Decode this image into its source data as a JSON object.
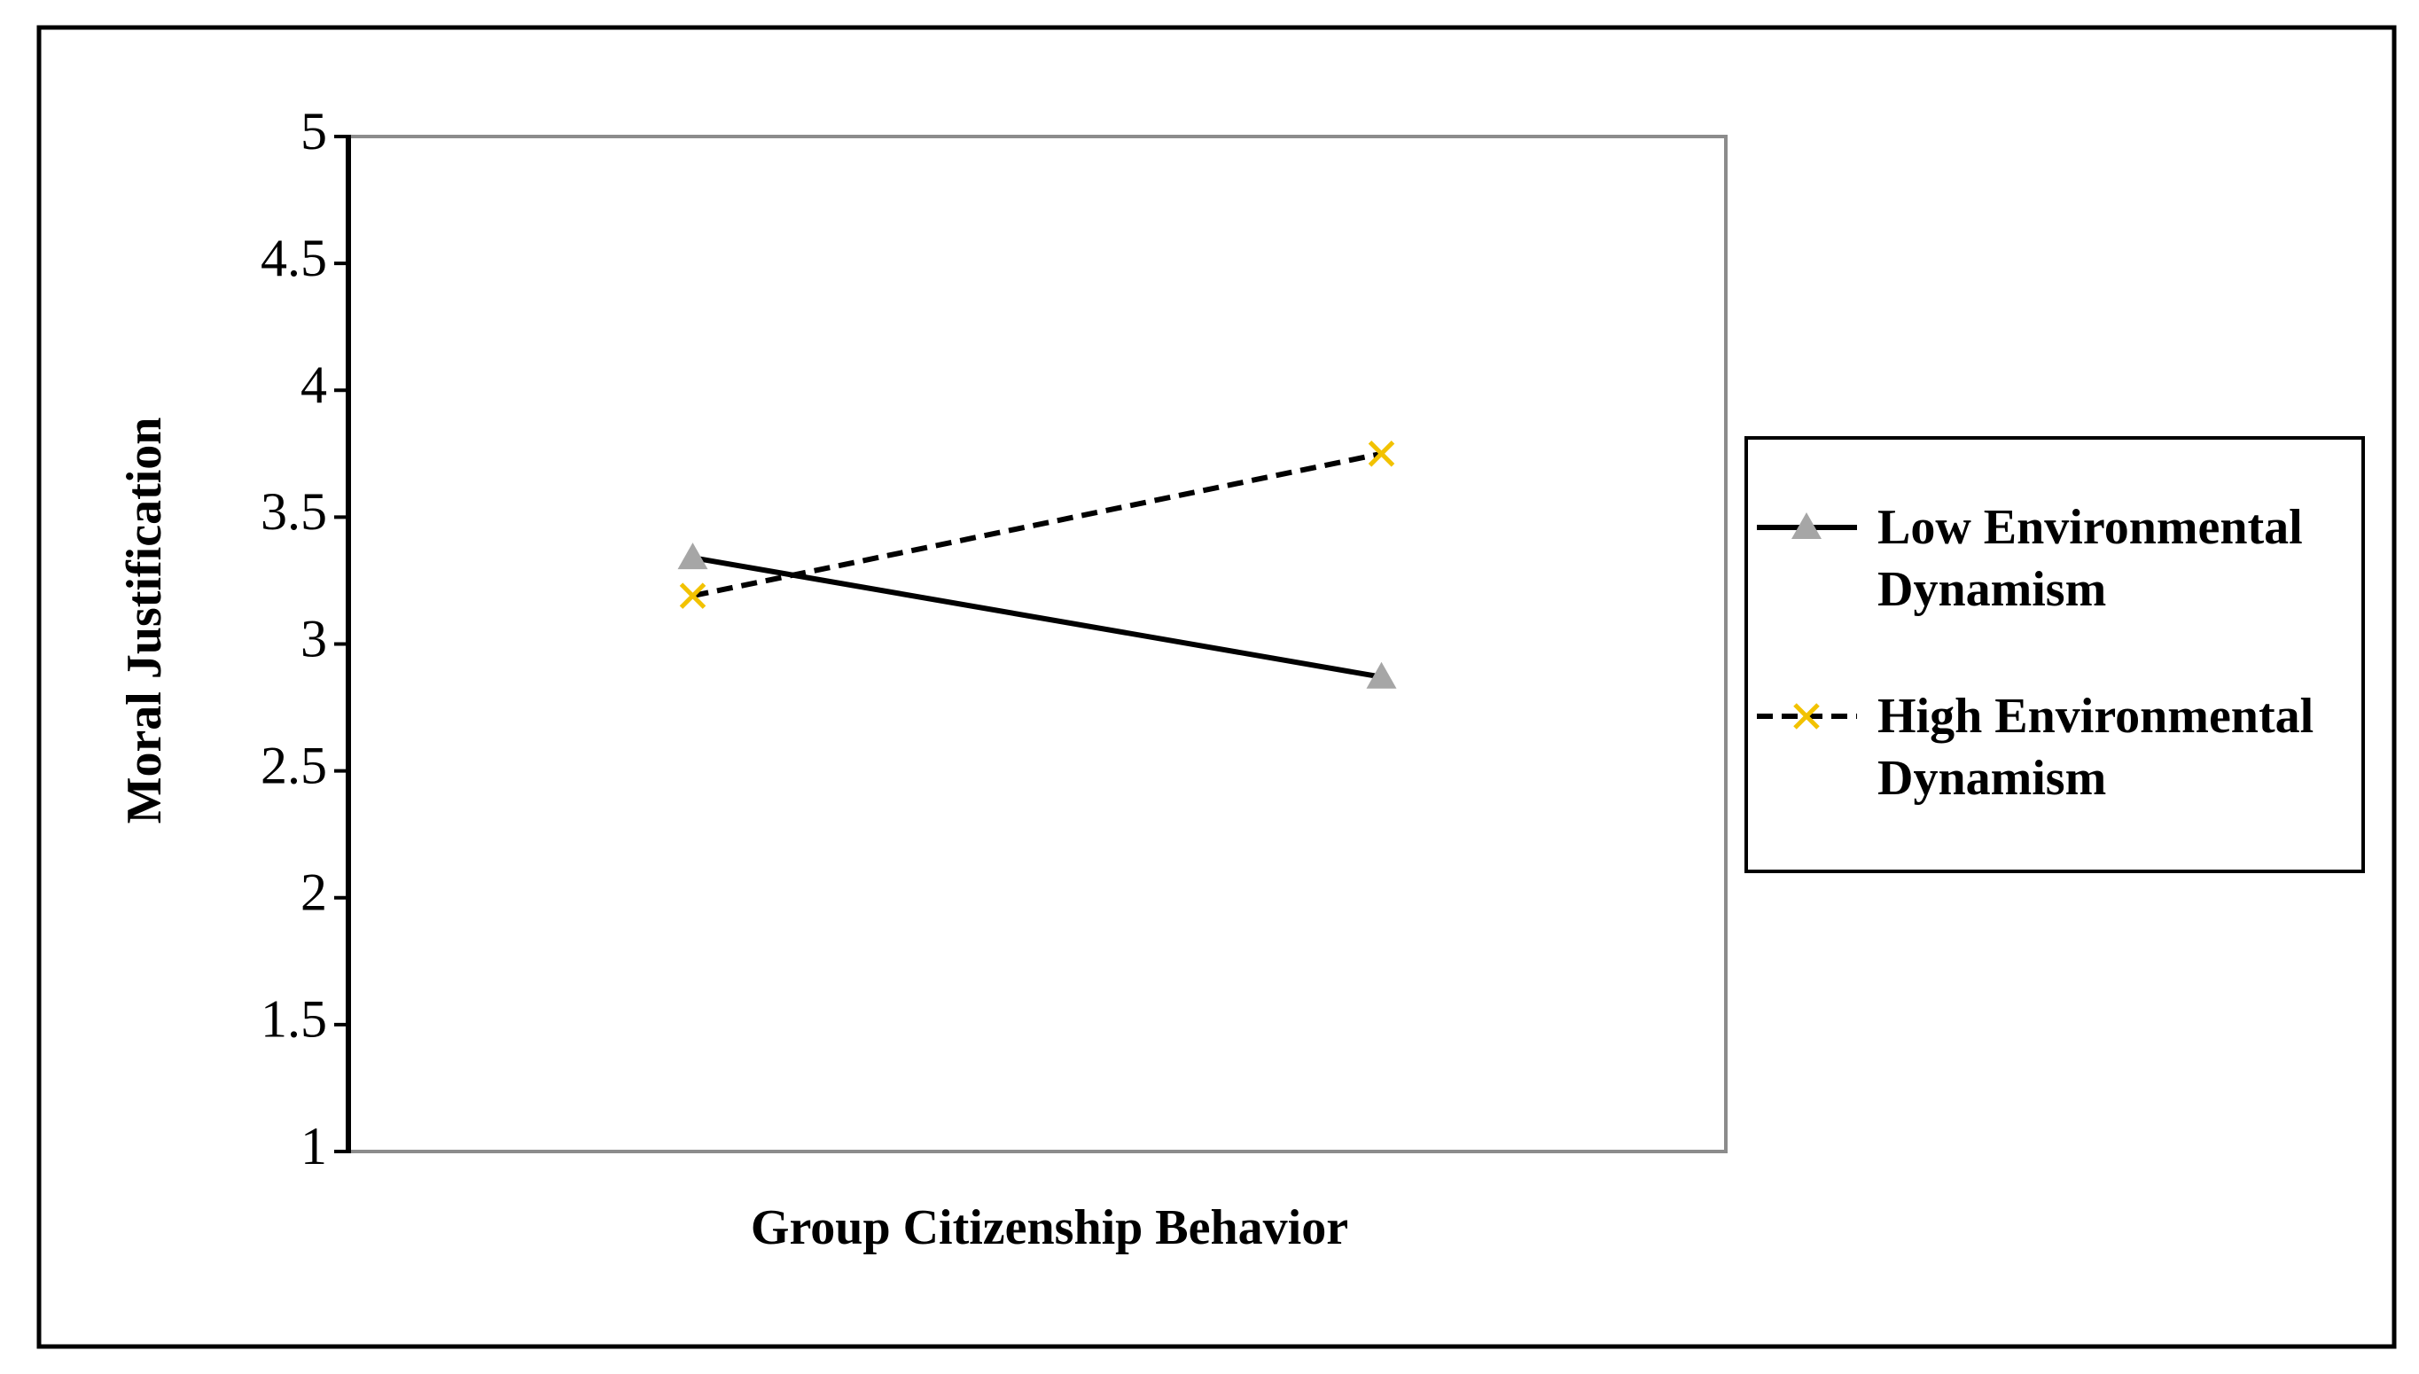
{
  "chart_data": {
    "type": "line",
    "y_label": "Moral Justification",
    "x_label": "Group Citizenship Behavior",
    "categories": [
      null,
      null
    ],
    "series": [
      {
        "name": "Low Environmental Dynamism",
        "color": "#000000",
        "marker": "triangle",
        "marker_color": "#a6a6a6",
        "dash": false,
        "values": [
          3.34,
          2.87
        ]
      },
      {
        "name": "High Environmental Dynamism",
        "color": "#000000",
        "marker": "x",
        "marker_color": "#f2c200",
        "dash": true,
        "values": [
          3.19,
          3.75
        ]
      }
    ],
    "ylim": [
      1,
      5
    ],
    "yticks": [
      1,
      1.5,
      2,
      2.5,
      3,
      3.5,
      4,
      4.5,
      5
    ],
    "legend": "right"
  }
}
